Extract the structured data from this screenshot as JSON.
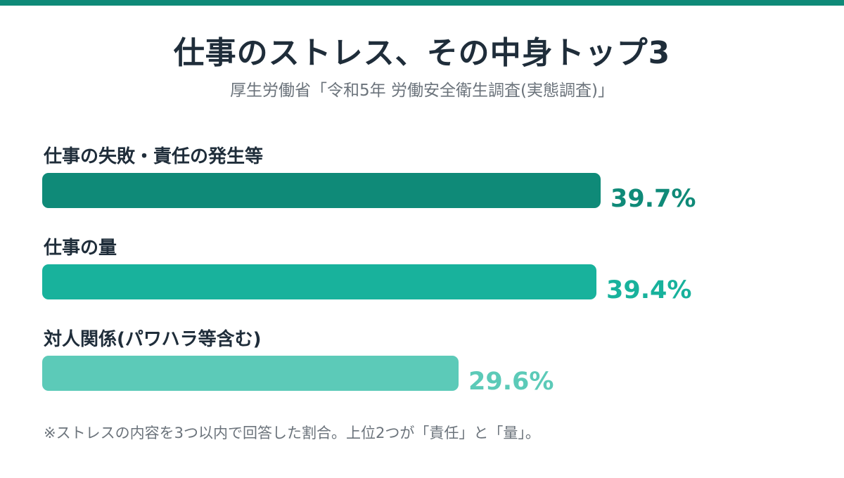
{
  "title": "仕事のストレス、その中身トップ3",
  "subtitle": "厚生労働省「令和5年 労働安全衛生調査(実態調査)」",
  "footnote": "※ストレスの内容を3つ以内で回答した割合。上位2つが「責任」と「量」。",
  "colors": {
    "accent": "#0f8a78",
    "text": "#1f2d3a",
    "muted": "#6b737b"
  },
  "chart_data": {
    "type": "bar",
    "orientation": "horizontal",
    "categories": [
      "仕事の失敗・責任の発生等",
      "仕事の量",
      "対人関係(パワハラ等含む)"
    ],
    "values": [
      39.7,
      39.4,
      29.6
    ],
    "value_labels": [
      "39.7%",
      "39.4%",
      "29.6%"
    ],
    "bar_colors": [
      "#0f8a78",
      "#18b29c",
      "#5ccab8"
    ],
    "unit": "%",
    "xlim": [
      0,
      50
    ],
    "grid": false,
    "legend": "none"
  }
}
